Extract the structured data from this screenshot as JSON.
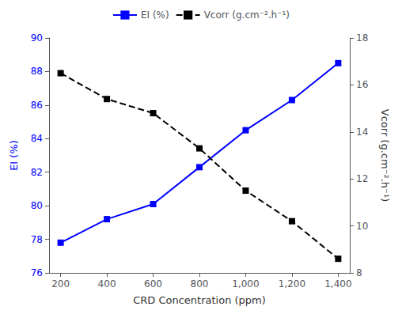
{
  "chart_data": {
    "type": "line",
    "xlabel": "CRD Concentration (ppm)",
    "ylabel": "EI (%)",
    "y2label": "Vcorr (g.cm⁻².h⁻¹)",
    "x": [
      200,
      400,
      600,
      800,
      1000,
      1200,
      1400
    ],
    "series": [
      {
        "name": "EI (%)",
        "color": "#0000FF",
        "values": [
          77.8,
          79.2,
          80.1,
          82.3,
          84.5,
          86.3,
          88.5
        ],
        "marker": "square",
        "line_style": "solid"
      },
      {
        "name": "Vcorr (g.cm⁻².h⁻¹)",
        "color": "#000000",
        "values": [
          16.5,
          15.4,
          14.8,
          13.3,
          11.5,
          10.2,
          8.6
        ],
        "axis": "y2",
        "marker": "square",
        "line_style": "dashed"
      }
    ],
    "xlim": [
      150,
      1450
    ],
    "xticks": [
      200,
      400,
      600,
      800,
      1000,
      1200,
      1400
    ],
    "ylim": [
      76,
      90
    ],
    "yticks": [
      76,
      78,
      80,
      82,
      84,
      86,
      88,
      90
    ],
    "y2lim": [
      8,
      18
    ],
    "y2ticks": [
      8,
      10,
      12,
      14,
      16,
      18
    ],
    "grid": false,
    "legend": "top"
  }
}
